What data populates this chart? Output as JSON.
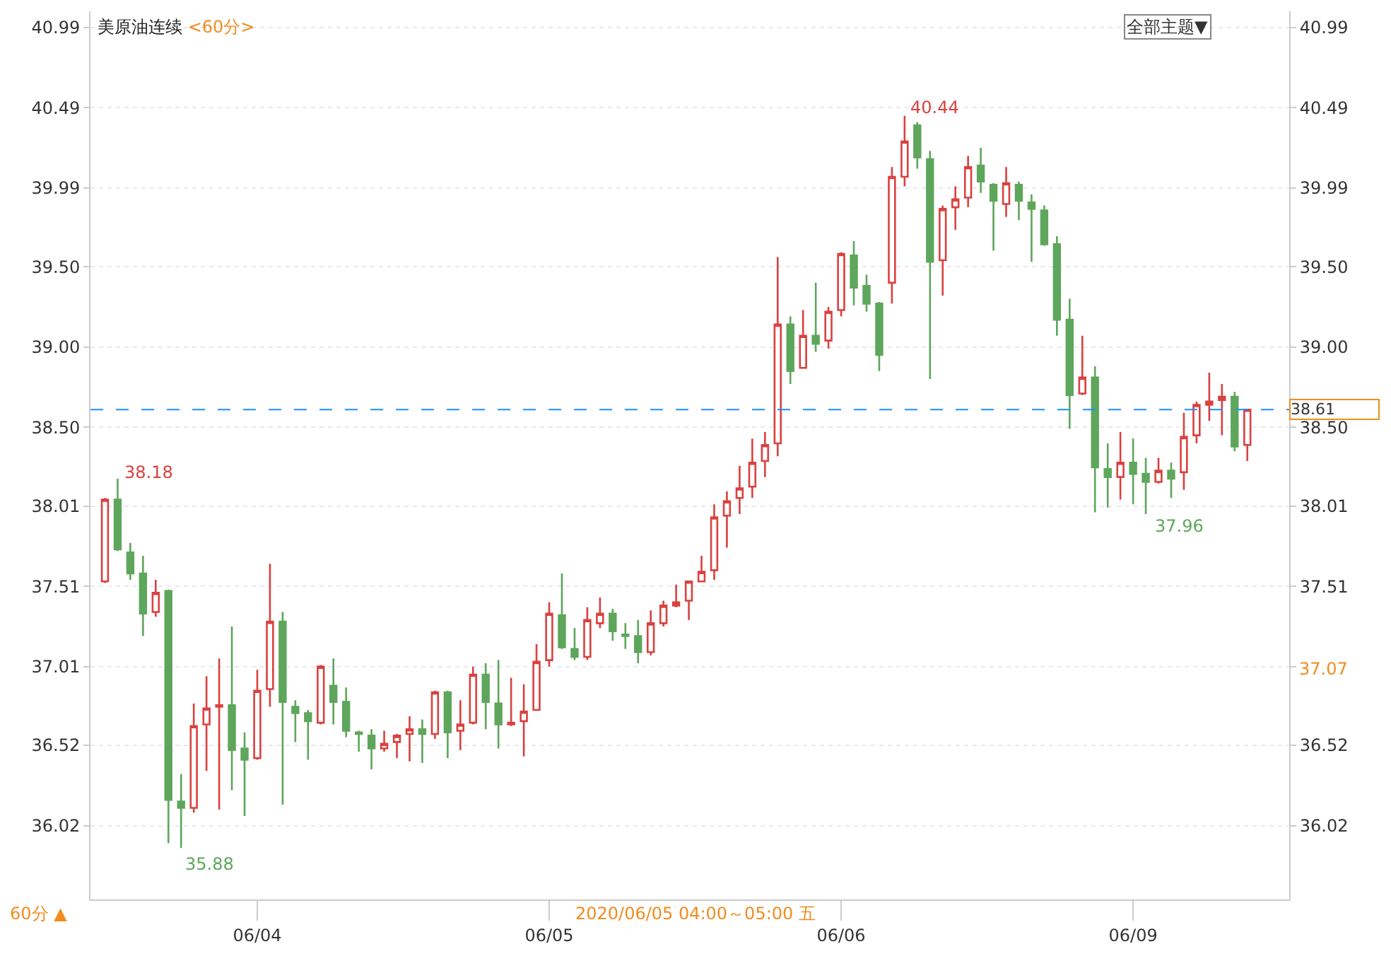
{
  "chart_data": {
    "type": "candlestick",
    "title": "美原油连续",
    "subtitle": "<60分>",
    "categories": [
      null,
      null,
      null,
      null,
      null,
      null,
      null,
      null,
      null,
      null,
      null,
      null,
      "06/04",
      null,
      null,
      null,
      null,
      null,
      null,
      null,
      null,
      null,
      null,
      null,
      null,
      null,
      null,
      null,
      null,
      null,
      null,
      null,
      null,
      null,
      null,
      "06/05",
      null,
      null,
      null,
      null,
      null,
      null,
      null,
      null,
      null,
      null,
      null,
      null,
      null,
      null,
      null,
      null,
      null,
      null,
      null,
      null,
      null,
      null,
      "06/06",
      null,
      null,
      null,
      null,
      null,
      null,
      null,
      null,
      null,
      null,
      null,
      null,
      null,
      null,
      null,
      null,
      null,
      null,
      null,
      null,
      null,
      null,
      "06/09",
      null,
      null,
      null,
      null,
      null,
      null,
      null,
      null,
      null
    ],
    "colors": [
      "#d9413f",
      "#5ea65b",
      "#5ea65b",
      "#5ea65b",
      "#d9413f",
      "#5ea65b",
      "#5ea65b",
      "#d9413f",
      "#d9413f",
      "#d9413f",
      "#5ea65b",
      "#5ea65b",
      "#d9413f",
      "#d9413f",
      "#5ea65b",
      "#5ea65b",
      "#5ea65b",
      "#d9413f",
      "#5ea65b",
      "#5ea65b",
      "#5ea65b",
      "#5ea65b",
      "#d9413f",
      "#d9413f",
      "#d9413f",
      "#5ea65b",
      "#d9413f",
      "#5ea65b",
      "#d9413f",
      "#d9413f",
      "#5ea65b",
      "#5ea65b",
      "#d9413f",
      "#d9413f",
      "#d9413f",
      "#d9413f",
      "#5ea65b",
      "#5ea65b",
      "#d9413f",
      "#d9413f",
      "#5ea65b",
      "#5ea65b",
      "#5ea65b",
      "#d9413f",
      "#d9413f",
      "#d9413f",
      "#d9413f",
      "#d9413f",
      "#d9413f",
      "#d9413f",
      "#d9413f",
      "#d9413f",
      "#d9413f",
      "#d9413f",
      "#5ea65b",
      "#d9413f",
      "#5ea65b",
      "#d9413f",
      "#d9413f",
      "#5ea65b",
      "#5ea65b",
      "#5ea65b",
      "#d9413f",
      "#d9413f",
      "#5ea65b",
      "#5ea65b",
      "#d9413f",
      "#d9413f",
      "#d9413f",
      "#5ea65b",
      "#5ea65b",
      "#d9413f",
      "#5ea65b",
      "#5ea65b",
      "#5ea65b",
      "#5ea65b",
      "#5ea65b",
      "#d9413f",
      "#5ea65b",
      "#5ea65b",
      "#d9413f",
      "#5ea65b",
      "#5ea65b",
      "#d9413f",
      "#5ea65b",
      "#d9413f",
      "#d9413f",
      "#d9413f",
      "#d9413f",
      "#5ea65b",
      "#d9413f"
    ],
    "ohlc": [
      [
        37.54,
        38.06,
        37.53,
        38.05
      ],
      [
        38.05,
        38.18,
        37.73,
        37.74
      ],
      [
        37.72,
        37.78,
        37.55,
        37.59
      ],
      [
        37.59,
        37.7,
        37.2,
        37.34
      ],
      [
        37.35,
        37.55,
        37.32,
        37.47
      ],
      [
        37.48,
        37.49,
        35.91,
        36.18
      ],
      [
        36.17,
        36.34,
        35.88,
        36.13
      ],
      [
        36.13,
        36.78,
        36.1,
        36.64
      ],
      [
        36.65,
        36.95,
        36.36,
        36.75
      ],
      [
        36.76,
        37.06,
        36.12,
        36.77
      ],
      [
        36.77,
        37.26,
        36.24,
        36.49
      ],
      [
        36.5,
        36.6,
        36.08,
        36.43
      ],
      [
        36.44,
        36.99,
        36.43,
        36.86
      ],
      [
        36.87,
        37.65,
        36.76,
        37.29
      ],
      [
        37.29,
        37.35,
        36.15,
        36.79
      ],
      [
        36.76,
        36.8,
        36.54,
        36.72
      ],
      [
        36.72,
        36.74,
        36.43,
        36.67
      ],
      [
        36.66,
        37.02,
        36.65,
        37.01
      ],
      [
        36.89,
        37.06,
        36.65,
        36.79
      ],
      [
        36.79,
        36.88,
        36.57,
        36.61
      ],
      [
        36.6,
        36.61,
        36.48,
        36.59
      ],
      [
        36.58,
        36.62,
        36.37,
        36.5
      ],
      [
        36.5,
        36.61,
        36.48,
        36.53
      ],
      [
        36.54,
        36.59,
        36.44,
        36.58
      ],
      [
        36.59,
        36.7,
        36.42,
        36.62
      ],
      [
        36.62,
        36.68,
        36.41,
        36.59
      ],
      [
        36.59,
        36.86,
        36.56,
        36.85
      ],
      [
        36.85,
        36.86,
        36.44,
        36.6
      ],
      [
        36.61,
        36.8,
        36.49,
        36.65
      ],
      [
        36.66,
        37.01,
        36.65,
        36.96
      ],
      [
        36.96,
        37.03,
        36.62,
        36.79
      ],
      [
        36.78,
        37.05,
        36.5,
        36.65
      ],
      [
        36.65,
        36.94,
        36.64,
        36.66
      ],
      [
        36.67,
        36.9,
        36.45,
        36.73
      ],
      [
        36.74,
        37.15,
        36.74,
        37.04
      ],
      [
        37.05,
        37.41,
        37.01,
        37.34
      ],
      [
        37.33,
        37.59,
        37.12,
        37.13
      ],
      [
        37.12,
        37.25,
        37.05,
        37.07
      ],
      [
        37.07,
        37.38,
        37.05,
        37.3
      ],
      [
        37.28,
        37.44,
        37.25,
        37.34
      ],
      [
        37.34,
        37.37,
        37.17,
        37.23
      ],
      [
        37.21,
        37.28,
        37.12,
        37.2
      ],
      [
        37.2,
        37.3,
        37.03,
        37.1
      ],
      [
        37.1,
        37.36,
        37.08,
        37.28
      ],
      [
        37.28,
        37.42,
        37.26,
        37.39
      ],
      [
        37.39,
        37.52,
        37.38,
        37.41
      ],
      [
        37.42,
        37.54,
        37.3,
        37.54
      ],
      [
        37.54,
        37.7,
        37.54,
        37.6
      ],
      [
        37.61,
        38.02,
        37.55,
        37.94
      ],
      [
        37.95,
        38.1,
        37.75,
        38.04
      ],
      [
        38.06,
        38.26,
        37.96,
        38.12
      ],
      [
        38.13,
        38.43,
        38.06,
        38.28
      ],
      [
        38.29,
        38.47,
        38.19,
        38.39
      ],
      [
        38.4,
        39.56,
        38.32,
        39.14
      ],
      [
        39.14,
        39.19,
        38.77,
        38.85
      ],
      [
        38.87,
        39.23,
        38.87,
        39.07
      ],
      [
        39.07,
        39.4,
        38.97,
        39.02
      ],
      [
        39.04,
        39.25,
        38.99,
        39.22
      ],
      [
        39.23,
        39.59,
        39.19,
        39.58
      ],
      [
        39.57,
        39.66,
        39.26,
        39.37
      ],
      [
        39.38,
        39.45,
        39.22,
        39.27
      ],
      [
        39.27,
        39.28,
        38.85,
        38.95
      ],
      [
        39.4,
        40.12,
        39.27,
        40.06
      ],
      [
        40.06,
        40.44,
        40.0,
        40.28
      ],
      [
        40.38,
        40.4,
        40.11,
        40.18
      ],
      [
        40.17,
        40.22,
        38.8,
        39.53
      ],
      [
        39.54,
        39.88,
        39.32,
        39.86
      ],
      [
        39.87,
        40.0,
        39.73,
        39.92
      ],
      [
        39.93,
        40.19,
        39.87,
        40.12
      ],
      [
        40.13,
        40.24,
        39.96,
        40.03
      ],
      [
        40.01,
        40.02,
        39.6,
        39.91
      ],
      [
        39.89,
        40.12,
        39.81,
        40.02
      ],
      [
        40.01,
        40.03,
        39.79,
        39.91
      ],
      [
        39.9,
        39.95,
        39.53,
        39.86
      ],
      [
        39.85,
        39.88,
        39.63,
        39.64
      ],
      [
        39.64,
        39.69,
        39.07,
        39.17
      ],
      [
        39.17,
        39.3,
        38.49,
        38.7
      ],
      [
        38.71,
        39.07,
        38.7,
        38.81
      ],
      [
        38.81,
        38.88,
        37.97,
        38.25
      ],
      [
        38.24,
        38.4,
        38.0,
        38.19
      ],
      [
        38.19,
        38.47,
        38.05,
        38.28
      ],
      [
        38.28,
        38.43,
        38.02,
        38.21
      ],
      [
        38.21,
        38.31,
        37.96,
        38.16
      ],
      [
        38.16,
        38.31,
        38.15,
        38.23
      ],
      [
        38.23,
        38.28,
        38.06,
        38.18
      ],
      [
        38.22,
        38.59,
        38.11,
        38.44
      ],
      [
        38.45,
        38.66,
        38.4,
        38.64
      ],
      [
        38.64,
        38.84,
        38.54,
        38.66
      ],
      [
        38.67,
        38.77,
        38.45,
        38.69
      ],
      [
        38.69,
        38.72,
        38.35,
        38.38
      ],
      [
        38.39,
        38.61,
        38.29,
        38.61
      ]
    ],
    "ylim": [
      35.56,
      41.09
    ],
    "yticks": [
      36.02,
      36.52,
      37.01,
      37.51,
      38.01,
      {
        "value": 38.5,
        "label": "38.50"
      },
      {
        "value": 39.0,
        "label": "39.00"
      },
      {
        "value": 39.5,
        "label": "39.50"
      },
      39.99,
      40.49,
      40.99
    ],
    "y2lim": [
      35.56,
      41.09
    ],
    "y2ticks": [
      36.02,
      36.52,
      {
        "value": 37.01,
        "label": null
      },
      37.51,
      38.01,
      {
        "value": 38.5,
        "label": "38.50"
      },
      {
        "value": 39.0,
        "label": "39.00"
      },
      {
        "value": 39.5,
        "label": "39.50"
      },
      39.99,
      40.49,
      40.99
    ],
    "grid": "y",
    "legend": false,
    "ref_lines": [
      {
        "axis": "y",
        "value": 38.61,
        "label": "38.61",
        "color": "#1e90ff",
        "line_style": "dashed"
      }
    ],
    "annotations": [
      "38.18",
      "35.88",
      "40.44",
      "37.96",
      "37.07",
      "全部主题▼",
      "2020/06/05 04:00～05:00 五",
      "60分 ▲"
    ]
  }
}
